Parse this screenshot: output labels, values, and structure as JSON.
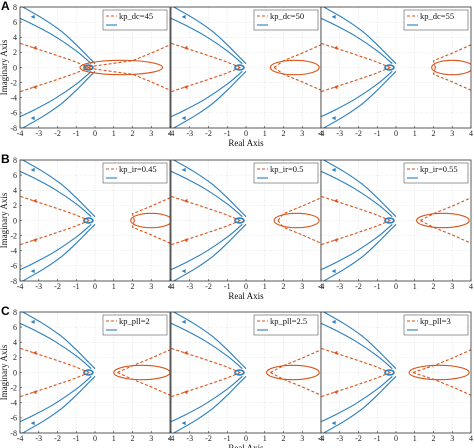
{
  "figure": {
    "rows": [
      {
        "label": "A",
        "legends": [
          "kp_dc=45",
          "kp_dc=50",
          "kp_dc=55"
        ]
      },
      {
        "label": "B",
        "legends": [
          "kp_ir=0.45",
          "kp_ir=0.5",
          "kp_ir=0.55"
        ]
      },
      {
        "label": "C",
        "legends": [
          "kp_pll=2",
          "kp_pll=2.5",
          "kp_pll=3"
        ]
      }
    ],
    "xlabel": "Real Axis",
    "ylabel": "Imaginary Axis",
    "colors": {
      "blue": "#2a7fbf",
      "orange": "#d95319",
      "grid": "#d9d9d9"
    }
  },
  "chart_data": {
    "type": "root-locus",
    "xlim": [
      -4,
      4
    ],
    "ylim": [
      -8,
      8
    ],
    "xticks": [
      -4,
      -3,
      -2,
      -1,
      0,
      1,
      2,
      3,
      4
    ],
    "yticks": [
      -8,
      -6,
      -4,
      -2,
      0,
      2,
      4,
      6,
      8
    ],
    "grid": true,
    "legend_placement": "top-right",
    "blue_branch_up": [
      [
        0,
        0.5
      ],
      [
        -0.4,
        1.5
      ],
      [
        -1,
        3
      ],
      [
        -1.8,
        4.8
      ],
      [
        -2.8,
        6.5
      ],
      [
        -4,
        8.2
      ]
    ],
    "blue_branch_low": [
      [
        0,
        -0.5
      ],
      [
        -0.4,
        -1.5
      ],
      [
        -1,
        -3
      ],
      [
        -1.8,
        -4.8
      ],
      [
        -2.8,
        -6.5
      ],
      [
        -4,
        -8.2
      ]
    ],
    "blue_inner_up": [
      [
        -0.2,
        0.5
      ],
      [
        -1,
        2.2
      ],
      [
        -2.2,
        4.2
      ],
      [
        -3.4,
        5.8
      ],
      [
        -4,
        6.5
      ]
    ],
    "blue_inner_low": [
      [
        -0.2,
        -0.5
      ],
      [
        -1,
        -2.2
      ],
      [
        -2.2,
        -4.2
      ],
      [
        -3.4,
        -5.8
      ],
      [
        -4,
        -6.5
      ]
    ],
    "orange_left_up": [
      [
        -0.3,
        0
      ],
      [
        -1.2,
        0.9
      ],
      [
        -2.4,
        1.9
      ],
      [
        -4,
        3.2
      ]
    ],
    "orange_left_low": [
      [
        -0.3,
        0
      ],
      [
        -1.2,
        -0.9
      ],
      [
        -2.4,
        -1.9
      ],
      [
        -4,
        -3.2
      ]
    ],
    "orange_right_up": [
      [
        1.2,
        0
      ],
      [
        2,
        0.9
      ],
      [
        3,
        1.9
      ],
      [
        4,
        3
      ]
    ],
    "orange_right_low": [
      [
        1.2,
        0
      ],
      [
        2,
        -0.9
      ],
      [
        3,
        -1.9
      ],
      [
        4,
        -3
      ]
    ],
    "loop_center": [
      -0.35,
      0
    ],
    "orange_loops": {
      "A": [
        [
          1.4,
          2.2,
          0.9,
          0.35
        ],
        [
          2.6,
          1.3,
          1.2,
          0.2
        ],
        [
          3.0,
          1.1,
          1.3,
          0.15
        ]
      ],
      "B": [
        [
          3.0,
          1.1,
          1.3,
          0.15
        ],
        [
          2.7,
          1.2,
          1.2,
          0.1
        ],
        [
          2.5,
          1.4,
          1.1,
          0.1
        ]
      ],
      "C": [
        [
          2.5,
          1.5,
          1.1,
          0.1
        ],
        [
          2.5,
          1.4,
          1.1,
          0.1
        ],
        [
          2.3,
          1.6,
          1.0,
          0.1
        ]
      ]
    }
  }
}
